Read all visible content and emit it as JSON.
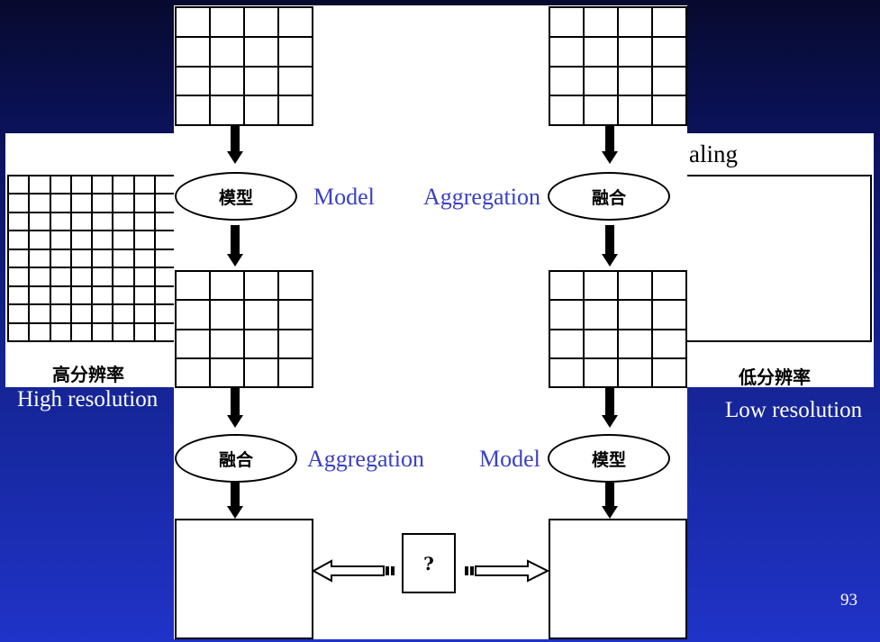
{
  "slide": {
    "page_number": "93",
    "background_top": "#070a2e",
    "background_bottom": "#1f33c8"
  },
  "left_panel": {
    "chinese_label": "高分辨率",
    "caption": "High resolution"
  },
  "right_panel": {
    "partial_title": "aling",
    "chinese_label": "低分辨率",
    "caption": "Low resolution"
  },
  "diagram": {
    "left_upper_ellipse": "模型",
    "left_upper_label": "Model",
    "right_upper_ellipse": "融合",
    "right_upper_label": "Aggregation",
    "left_lower_ellipse": "融合",
    "left_lower_label": "Aggregation",
    "right_lower_ellipse": "模型",
    "right_lower_label": "Model",
    "comparison_symbol": "?"
  }
}
